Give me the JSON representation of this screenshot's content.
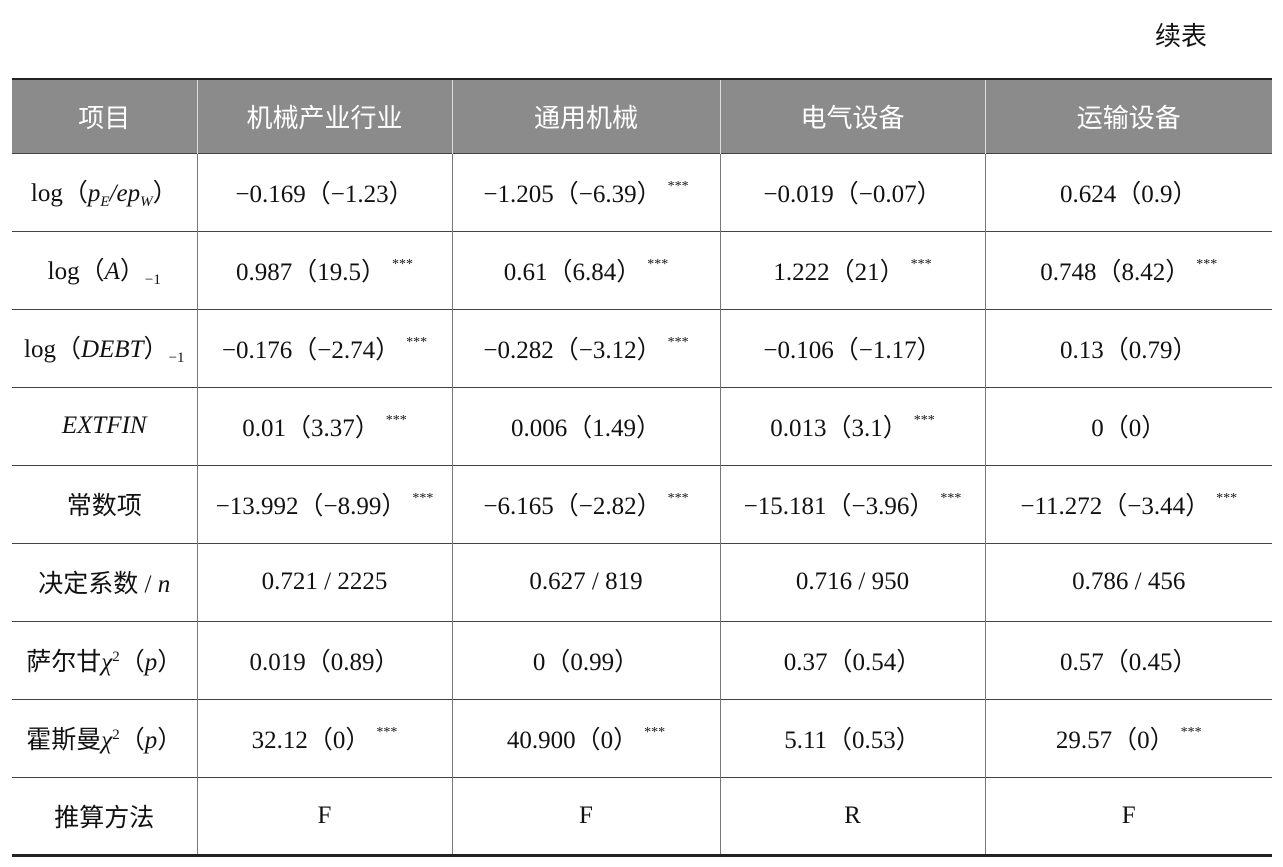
{
  "caption": "续表",
  "table": {
    "header": [
      "项目",
      "机械产业行业",
      "通用机械",
      "电气设备",
      "运输设备"
    ],
    "rows": [
      {
        "label": [
          "log（",
          "p",
          "E",
          "/ep",
          "W",
          "）"
        ],
        "cells": [
          {
            "text": "−0.169（−1.23）"
          },
          {
            "text": "−1.205（−6.39）",
            "sig": "***"
          },
          {
            "text": "−0.019（−0.07）"
          },
          {
            "text": "0.624（0.9）"
          }
        ]
      },
      {
        "label": [
          "log（",
          "A",
          "）",
          "−1"
        ],
        "cells": [
          {
            "text": "0.987（19.5）",
            "sig": "***"
          },
          {
            "text": "0.61（6.84）",
            "sig": "***"
          },
          {
            "text": "1.222（21）",
            "sig": "***"
          },
          {
            "text": "0.748（8.42）",
            "sig": "***"
          }
        ]
      },
      {
        "label": [
          "log（",
          "DEBT",
          "）",
          "−1"
        ],
        "cells": [
          {
            "text": "−0.176（−2.74）",
            "sig": "***"
          },
          {
            "text": "−0.282（−3.12）",
            "sig": "***"
          },
          {
            "text": "−0.106（−1.17）"
          },
          {
            "text": "0.13（0.79）"
          }
        ]
      },
      {
        "label": [
          "EXTFIN"
        ],
        "cells": [
          {
            "text": "0.01（3.37）",
            "sig": "***"
          },
          {
            "text": "0.006（1.49）"
          },
          {
            "text": "0.013（3.1）",
            "sig": "***"
          },
          {
            "text": "0（0）"
          }
        ]
      },
      {
        "label": [
          "常数项"
        ],
        "cells": [
          {
            "text": "−13.992（−8.99）",
            "sig": "***"
          },
          {
            "text": "−6.165（−2.82）",
            "sig": "***"
          },
          {
            "text": "−15.181（−3.96）",
            "sig": "***"
          },
          {
            "text": "−11.272（−3.44）",
            "sig": "***"
          }
        ]
      },
      {
        "label": [
          "决定系数 / ",
          "n"
        ],
        "cells": [
          {
            "text": "0.721 / 2225"
          },
          {
            "text": "0.627 / 819"
          },
          {
            "text": "0.716 / 950"
          },
          {
            "text": "0.786 / 456"
          }
        ]
      },
      {
        "label": [
          "萨尔甘",
          "χ",
          "2",
          "（",
          "p",
          "）"
        ],
        "cells": [
          {
            "text": "0.019（0.89）"
          },
          {
            "text": "0（0.99）"
          },
          {
            "text": "0.37（0.54）"
          },
          {
            "text": "0.57（0.45）"
          }
        ]
      },
      {
        "label": [
          "霍斯曼",
          "χ",
          "2",
          "（",
          "p",
          "）"
        ],
        "cells": [
          {
            "text": "32.12（0）",
            "sig": "***"
          },
          {
            "text": "40.900（0）",
            "sig": "***"
          },
          {
            "text": "5.11（0.53）"
          },
          {
            "text": "29.57（0）",
            "sig": "***"
          }
        ]
      },
      {
        "label": [
          "推算方法"
        ],
        "cells": [
          {
            "text": "F"
          },
          {
            "text": "F"
          },
          {
            "text": "R"
          },
          {
            "text": "F"
          }
        ]
      }
    ]
  }
}
